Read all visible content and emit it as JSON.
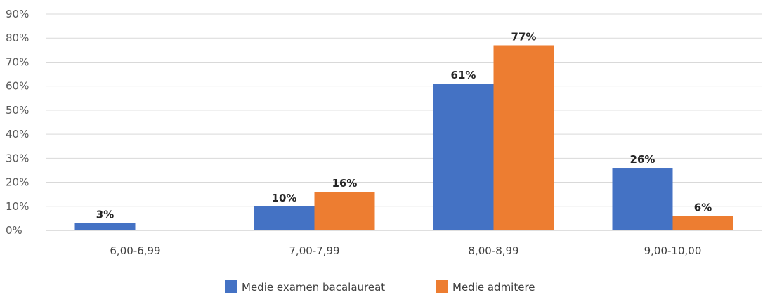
{
  "chart_data": {
    "type": "bar",
    "title": "",
    "xlabel": "",
    "ylabel": "",
    "categories": [
      "6,00-6,99",
      "7,00-7,99",
      "8,00-8,99",
      "9,00-10,00"
    ],
    "series": [
      {
        "name": "Medie examen bacalaureat",
        "values": [
          3,
          10,
          61,
          26
        ],
        "labels": [
          "3%",
          "10%",
          "61%",
          "26%"
        ],
        "color": "#4472c4"
      },
      {
        "name": "Medie admitere",
        "values": [
          null,
          16,
          77,
          6
        ],
        "labels": [
          "",
          "16%",
          "77%",
          "6%"
        ],
        "color": "#ed7d31"
      }
    ],
    "ylim": [
      0,
      90
    ],
    "yticks": [
      0,
      10,
      20,
      30,
      40,
      50,
      60,
      70,
      80,
      90
    ],
    "ytick_labels": [
      "0%",
      "10%",
      "20%",
      "30%",
      "40%",
      "50%",
      "60%",
      "70%",
      "80%",
      "90%"
    ],
    "grid": true,
    "legend_position": "bottom"
  }
}
